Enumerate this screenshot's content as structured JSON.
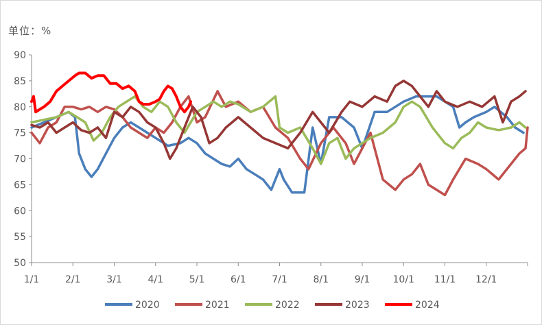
{
  "unit_label": "单位：%",
  "colors": {
    "2020": "#4a7ebb",
    "2021": "#c0504d",
    "2022": "#9bbb59",
    "2023": "#953735",
    "2024": "#ff0000",
    "axis": "#8c8c8c",
    "text": "#595959"
  },
  "chart_data": {
    "type": "line",
    "title": "",
    "xlabel": "",
    "ylabel": "单位：%",
    "ylim": [
      50,
      90
    ],
    "yticks": [
      "50",
      "55",
      "60",
      "65",
      "70",
      "75",
      "80",
      "85",
      "90"
    ],
    "xlim": [
      1,
      13
    ],
    "xticks": [
      "1/1",
      "2/1",
      "3/1",
      "4/1",
      "5/1",
      "6/1",
      "7/1",
      "8/1",
      "9/1",
      "10/1",
      "11/1",
      "12/1"
    ],
    "grid": false,
    "legend": "bottom",
    "series": [
      {
        "name": "2020",
        "color": "#4a7ebb",
        "x": [
          1.0,
          1.3,
          1.6,
          1.9,
          2.05,
          2.15,
          2.3,
          2.45,
          2.6,
          2.8,
          3.0,
          3.2,
          3.4,
          3.6,
          3.8,
          4.0,
          4.3,
          4.6,
          4.8,
          5.0,
          5.2,
          5.4,
          5.6,
          5.8,
          6.0,
          6.2,
          6.4,
          6.6,
          6.8,
          7.0,
          7.1,
          7.3,
          7.5,
          7.6,
          7.8,
          8.0,
          8.2,
          8.5,
          8.8,
          9.0,
          9.3,
          9.6,
          9.8,
          10.0,
          10.3,
          10.6,
          10.8,
          11.0,
          11.2,
          11.35,
          11.5,
          11.7,
          12.0,
          12.2,
          12.5,
          12.7,
          12.9
        ],
        "y": [
          76,
          77,
          78,
          79,
          78,
          71,
          68,
          66.5,
          68,
          71,
          74,
          76,
          77,
          76,
          75,
          74,
          72.5,
          73,
          74,
          73,
          71,
          70,
          69,
          68.5,
          70,
          68,
          67,
          66,
          64,
          68,
          66,
          63.5,
          63.5,
          63.5,
          76,
          69,
          78,
          78,
          76,
          72,
          79,
          79,
          80,
          81,
          82,
          82,
          82,
          81,
          80,
          76,
          77,
          78,
          79,
          80,
          78,
          76,
          75
        ]
      },
      {
        "name": "2021",
        "color": "#c0504d",
        "x": [
          1.0,
          1.2,
          1.4,
          1.6,
          1.8,
          2.0,
          2.2,
          2.4,
          2.6,
          2.8,
          3.0,
          3.2,
          3.4,
          3.6,
          3.8,
          4.0,
          4.2,
          4.4,
          4.6,
          4.8,
          5.0,
          5.2,
          5.5,
          5.7,
          6.0,
          6.3,
          6.6,
          6.9,
          7.2,
          7.5,
          7.7,
          8.0,
          8.3,
          8.6,
          8.8,
          9.0,
          9.2,
          9.5,
          9.8,
          10.0,
          10.2,
          10.4,
          10.6,
          10.8,
          11.0,
          11.2,
          11.5,
          11.8,
          12.0,
          12.3,
          12.6,
          12.8,
          12.95,
          13.0
        ],
        "y": [
          75,
          73,
          76,
          77,
          80,
          80,
          79.5,
          80,
          79,
          80,
          79.5,
          78,
          76,
          75,
          74,
          76,
          75,
          77,
          80,
          82,
          77,
          78,
          83,
          80,
          81,
          79,
          80,
          76,
          74,
          70,
          68,
          73,
          76,
          73,
          69,
          72,
          75,
          66,
          64,
          66,
          67,
          69,
          65,
          64,
          63,
          66,
          70,
          69,
          68,
          66,
          69,
          71,
          72,
          76
        ]
      },
      {
        "name": "2022",
        "color": "#9bbb59",
        "x": [
          1.0,
          1.3,
          1.6,
          1.9,
          2.1,
          2.3,
          2.5,
          2.7,
          2.9,
          3.1,
          3.3,
          3.5,
          3.7,
          3.9,
          4.1,
          4.3,
          4.5,
          4.7,
          5.0,
          5.2,
          5.4,
          5.6,
          5.8,
          6.0,
          6.3,
          6.6,
          6.9,
          7.0,
          7.2,
          7.5,
          7.8,
          8.0,
          8.2,
          8.4,
          8.6,
          8.8,
          9.0,
          9.2,
          9.5,
          9.8,
          10.0,
          10.2,
          10.4,
          10.7,
          11.0,
          11.2,
          11.4,
          11.6,
          11.8,
          12.0,
          12.3,
          12.6,
          12.8,
          12.95
        ],
        "y": [
          77,
          77.5,
          78,
          79,
          78,
          77,
          73.5,
          75,
          78,
          80,
          81,
          82,
          80,
          79,
          81,
          80,
          77,
          75,
          79,
          80,
          81,
          80,
          81,
          80.5,
          79,
          80,
          82,
          76,
          75,
          76,
          72,
          69,
          73,
          74,
          70,
          72,
          73,
          74,
          75,
          77,
          80,
          81,
          80,
          76,
          73,
          72,
          74,
          75,
          77,
          76,
          75.5,
          76,
          77,
          76
        ]
      },
      {
        "name": "2023",
        "color": "#953735",
        "x": [
          1.0,
          1.2,
          1.4,
          1.6,
          1.8,
          2.0,
          2.2,
          2.4,
          2.6,
          2.8,
          3.0,
          3.2,
          3.4,
          3.6,
          3.8,
          4.0,
          4.2,
          4.35,
          4.5,
          4.7,
          4.9,
          5.1,
          5.3,
          5.5,
          5.7,
          6.0,
          6.3,
          6.6,
          6.9,
          7.2,
          7.5,
          7.8,
          8.0,
          8.2,
          8.5,
          8.7,
          9.0,
          9.3,
          9.6,
          9.8,
          10.0,
          10.2,
          10.4,
          10.6,
          10.8,
          11.0,
          11.3,
          11.6,
          11.9,
          12.2,
          12.4,
          12.6,
          12.8,
          12.95
        ],
        "y": [
          76.5,
          76,
          77,
          75,
          76,
          77,
          75.5,
          75,
          76,
          74,
          79,
          78,
          80,
          79,
          77,
          76,
          73,
          70,
          72,
          76,
          80,
          78,
          73,
          74,
          76,
          78,
          76,
          74,
          73,
          72,
          75,
          79,
          77,
          75,
          79,
          81,
          80,
          82,
          81,
          84,
          85,
          84,
          82,
          80,
          83,
          81,
          80,
          81,
          80,
          82,
          77,
          81,
          82,
          83
        ]
      },
      {
        "name": "2024",
        "color": "#ff0000",
        "x": [
          1.0,
          1.05,
          1.1,
          1.2,
          1.3,
          1.45,
          1.6,
          1.75,
          1.9,
          2.05,
          2.15,
          2.3,
          2.45,
          2.6,
          2.75,
          2.9,
          3.05,
          3.2,
          3.35,
          3.5,
          3.6,
          3.7,
          3.85,
          4.0,
          4.1,
          4.2,
          4.3,
          4.4,
          4.5,
          4.6,
          4.7,
          4.8,
          4.85
        ],
        "y": [
          81,
          82,
          79,
          79.5,
          80,
          81,
          83,
          84,
          85,
          86,
          86.5,
          86.5,
          85.5,
          86,
          86,
          84.5,
          84.5,
          83.5,
          84,
          83,
          81,
          80.5,
          80.5,
          81,
          81.5,
          83,
          84,
          83.5,
          82,
          80,
          79,
          80,
          81
        ]
      }
    ]
  }
}
